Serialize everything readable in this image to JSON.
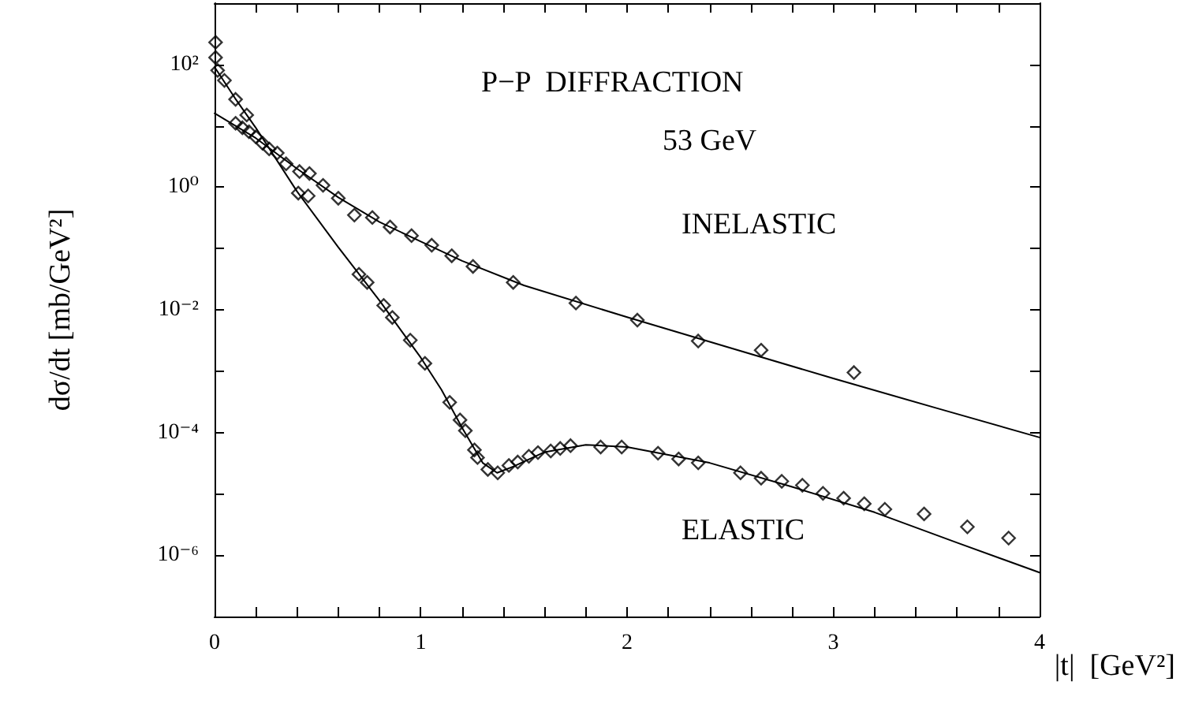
{
  "chart_data": {
    "type": "scatter",
    "title": "P−P  DIFFRACTION",
    "subtitle": "53 GeV",
    "xlabel": "|t|  [GeV²]",
    "ylabel": "dσ/dt [mb/GeV²]",
    "log": "y",
    "marker": "diamond",
    "line_style": "solid",
    "xlim": [
      0,
      4
    ],
    "ylim": [
      1e-07,
      1000
    ],
    "xticks": [
      0,
      {
        "value": 0.2,
        "label": null
      },
      {
        "value": 0.4,
        "label": null
      },
      {
        "value": 0.6,
        "label": null
      },
      {
        "value": 0.8,
        "label": null
      },
      1,
      {
        "value": 1.2,
        "label": null
      },
      {
        "value": 1.4,
        "label": null
      },
      {
        "value": 1.6,
        "label": null
      },
      {
        "value": 1.8,
        "label": null
      },
      2,
      {
        "value": 2.2,
        "label": null
      },
      {
        "value": 2.4,
        "label": null
      },
      {
        "value": 2.6,
        "label": null
      },
      {
        "value": 2.8,
        "label": null
      },
      3,
      {
        "value": 3.2,
        "label": null
      },
      {
        "value": 3.4,
        "label": null
      },
      {
        "value": 3.6,
        "label": null
      },
      {
        "value": 3.8,
        "label": null
      },
      4
    ],
    "yticks": [
      {
        "value": 1e-07,
        "label": null
      },
      {
        "value": 1e-06,
        "label": "10⁻⁶"
      },
      {
        "value": 1e-05,
        "label": null
      },
      {
        "value": 0.0001,
        "label": "10⁻⁴"
      },
      {
        "value": 0.001,
        "label": null
      },
      {
        "value": 0.01,
        "label": "10⁻²"
      },
      {
        "value": 0.1,
        "label": null
      },
      {
        "value": 1,
        "label": "10⁰"
      },
      {
        "value": 10,
        "label": null
      },
      {
        "value": 100,
        "label": "10²"
      },
      {
        "value": 1000,
        "label": null
      }
    ],
    "series": [
      {
        "name": "INELASTIC",
        "color": "#000000",
        "x": [
          0.102,
          0.135,
          0.167,
          0.2,
          0.233,
          0.265,
          0.304,
          0.347,
          0.412,
          0.46,
          0.526,
          0.6,
          0.678,
          0.765,
          0.851,
          0.955,
          1.053,
          1.15,
          1.253,
          1.448,
          1.752,
          2.05,
          2.345,
          2.65,
          3.1
        ],
        "values": [
          11,
          9.3,
          8,
          6.6,
          5.2,
          4.2,
          3.6,
          2.4,
          1.8,
          1.67,
          1.07,
          0.66,
          0.35,
          0.32,
          0.224,
          0.162,
          0.113,
          0.076,
          0.051,
          0.028,
          0.0129,
          0.0068,
          0.0031,
          0.0022,
          0.00095
        ]
      },
      {
        "type": "line",
        "marker": "none",
        "color": "#000000",
        "x": [
          0,
          0.2,
          0.4,
          0.6,
          0.8,
          1.0,
          1.2,
          1.5,
          2.0,
          2.5,
          3.0,
          3.5,
          4.0
        ],
        "values": [
          16,
          6.3,
          2.0,
          0.68,
          0.27,
          0.13,
          0.063,
          0.025,
          0.0076,
          0.0024,
          0.00076,
          0.00025,
          8.3e-05
        ]
      },
      {
        "name": "ELASTIC",
        "color": "#000000",
        "x": [
          0.005,
          0.005,
          0.015,
          0.048,
          0.102,
          0.156,
          0.406,
          0.454,
          0.7,
          0.74,
          0.82,
          0.862,
          0.949,
          1.02,
          1.14,
          1.19,
          1.216,
          1.26,
          1.275,
          1.325,
          1.373,
          1.427,
          1.47,
          1.524,
          1.568,
          1.63,
          1.676,
          1.726,
          1.872,
          1.974,
          2.15,
          2.25,
          2.345,
          2.55,
          2.65,
          2.75,
          2.85,
          2.95,
          3.05,
          3.15,
          3.25,
          3.44,
          3.65,
          3.85
        ],
        "values": [
          230,
          130,
          80,
          55,
          27,
          15,
          0.8,
          0.72,
          0.038,
          0.028,
          0.0118,
          0.0075,
          0.0032,
          0.00134,
          0.00031,
          0.00016,
          0.000107,
          5.2e-05,
          3.9e-05,
          2.5e-05,
          2.2e-05,
          2.9e-05,
          3.3e-05,
          4.1e-05,
          4.7e-05,
          5e-05,
          5.5e-05,
          6.1e-05,
          5.8e-05,
          5.8e-05,
          4.6e-05,
          3.7e-05,
          3.2e-05,
          2.2e-05,
          1.8e-05,
          1.6e-05,
          1.38e-05,
          1.02e-05,
          8.5e-06,
          6.9e-06,
          5.6e-06,
          4.7e-06,
          2.9e-06,
          1.9e-06
        ]
      },
      {
        "type": "line",
        "marker": "none",
        "color": "#000000",
        "x": [
          0,
          0.1,
          0.2,
          0.4,
          0.6,
          0.8,
          1.0,
          1.1,
          1.2,
          1.3,
          1.37,
          1.45,
          1.6,
          1.8,
          2.0,
          2.4,
          2.8,
          3.2,
          3.6,
          4.0
        ],
        "values": [
          91,
          28,
          9.3,
          0.85,
          0.105,
          0.0141,
          0.00166,
          0.0005,
          0.00012,
          3.2e-05,
          2.2e-05,
          2.8e-05,
          4.8e-05,
          6.3e-05,
          5.8e-05,
          3.2e-05,
          1.3e-05,
          5e-06,
          1.6e-06,
          5.2e-07
        ]
      }
    ]
  }
}
